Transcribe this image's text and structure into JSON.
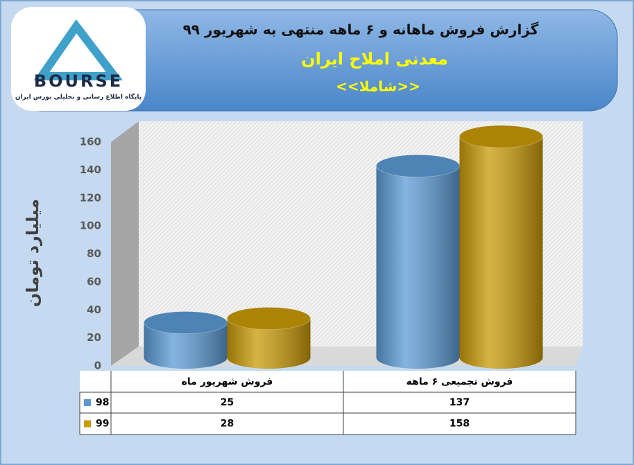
{
  "logo": {
    "name": "BOURSE",
    "tagline": "پایگاه اطلاع رسانی و تحلیلی بورس ایران"
  },
  "chart_data": {
    "type": "bar",
    "title": "گزارش فروش ماهانه و ۶  ماهه منتهی به شهریور ۹۹",
    "subtitle": "معدنی املاح ایران",
    "symbol": "<<شاملا>>",
    "y_label": "میلیارد تومان",
    "categories": [
      "فروش شهریور  ماه",
      "فروش تجمیعی ۶ ماهه"
    ],
    "series": [
      {
        "name": "98",
        "color": "#5b9bd5",
        "values": [
          25,
          137
        ]
      },
      {
        "name": "99",
        "color": "#c99a06",
        "values": [
          28,
          158
        ]
      }
    ],
    "ylim": [
      0,
      160
    ],
    "yticks": [
      0,
      20,
      40,
      60,
      80,
      100,
      120,
      140,
      160
    ],
    "data_table": true
  }
}
